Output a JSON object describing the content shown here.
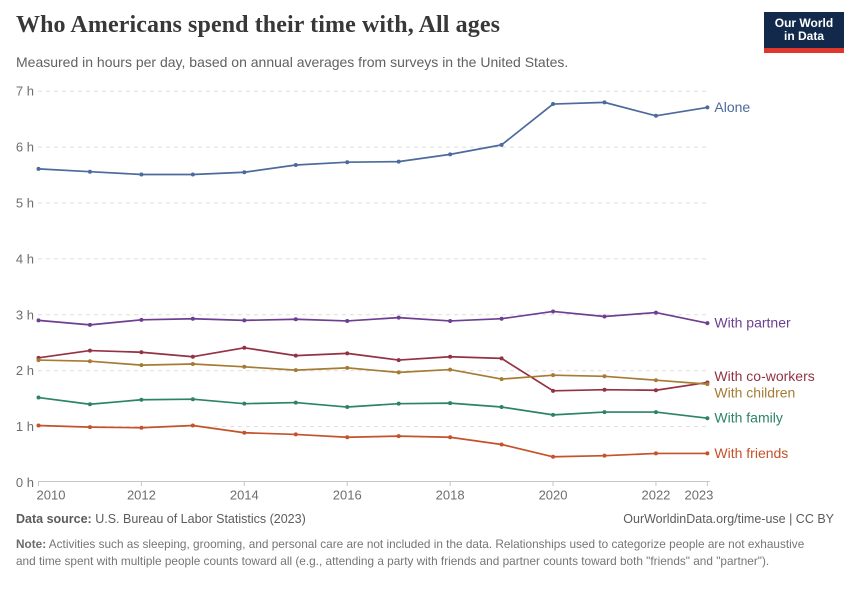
{
  "header": {
    "title": "Who Americans spend their time with, All ages",
    "subtitle": "Measured in hours per day, based on annual averages from surveys in the United States.",
    "logo": {
      "line1": "Our World",
      "line2": "in Data",
      "bg_color": "#12294b",
      "accent_color": "#e0362c"
    }
  },
  "chart_data": {
    "type": "line",
    "title": "Who Americans spend their time with, All ages",
    "xlabel": "",
    "ylabel": "hours per day",
    "x": [
      2010,
      2011,
      2012,
      2013,
      2014,
      2015,
      2016,
      2017,
      2018,
      2019,
      2020,
      2021,
      2022,
      2023
    ],
    "x_tick_labels": [
      2010,
      2012,
      2014,
      2016,
      2018,
      2020,
      2022,
      2023
    ],
    "y_ticks": [
      0,
      1,
      2,
      3,
      4,
      5,
      6,
      7
    ],
    "y_tick_suffix": " h",
    "ylim": [
      0,
      7
    ],
    "xlim": [
      2010,
      2023
    ],
    "grid": "horizontal-dashed",
    "legend_position": "right-of-line-ends",
    "series": [
      {
        "name": "Alone",
        "color": "#4c6a9c",
        "label_dy": 0,
        "values": [
          5.61,
          5.56,
          5.51,
          5.51,
          5.55,
          5.68,
          5.73,
          5.74,
          5.87,
          6.04,
          6.77,
          6.8,
          6.56,
          6.71
        ]
      },
      {
        "name": "With partner",
        "color": "#6d3e91",
        "label_dy": 0,
        "values": [
          2.9,
          2.82,
          2.91,
          2.93,
          2.9,
          2.92,
          2.89,
          2.95,
          2.89,
          2.93,
          3.06,
          2.97,
          3.04,
          2.85
        ]
      },
      {
        "name": "With co-workers",
        "color": "#933242",
        "label_dy": -6,
        "values": [
          2.23,
          2.36,
          2.33,
          2.25,
          2.41,
          2.27,
          2.31,
          2.19,
          2.25,
          2.22,
          1.64,
          1.66,
          1.65,
          1.79
        ]
      },
      {
        "name": "With children",
        "color": "#a67b33",
        "label_dy": 9,
        "values": [
          2.19,
          2.17,
          2.1,
          2.12,
          2.07,
          2.01,
          2.05,
          1.97,
          2.02,
          1.85,
          1.92,
          1.9,
          1.83,
          1.76
        ]
      },
      {
        "name": "With family",
        "color": "#2c8465",
        "label_dy": 0,
        "values": [
          1.52,
          1.4,
          1.48,
          1.49,
          1.41,
          1.43,
          1.35,
          1.41,
          1.42,
          1.35,
          1.21,
          1.26,
          1.26,
          1.15
        ]
      },
      {
        "name": "With friends",
        "color": "#c4522b",
        "label_dy": 0,
        "values": [
          1.02,
          0.99,
          0.98,
          1.02,
          0.89,
          0.86,
          0.81,
          0.83,
          0.81,
          0.68,
          0.46,
          0.48,
          0.52,
          0.52
        ]
      }
    ],
    "axis_text_color": "#6e6e6e",
    "gridline_color": "#dedede",
    "axis_line_color": "#c6c6c6"
  },
  "footer": {
    "source_label": "Data source:",
    "source_text": " U.S. Bureau of Labor Statistics (2023)",
    "rights": "OurWorldinData.org/time-use | CC BY",
    "note_label": "Note:",
    "note_text": " Activities such as sleeping, grooming, and personal care are not included in the data. Relationships used to categorize people are not exhaustive and time spent with multiple people counts toward all (e.g., attending a party with friends and partner counts toward both \"friends\" and \"partner\")."
  }
}
